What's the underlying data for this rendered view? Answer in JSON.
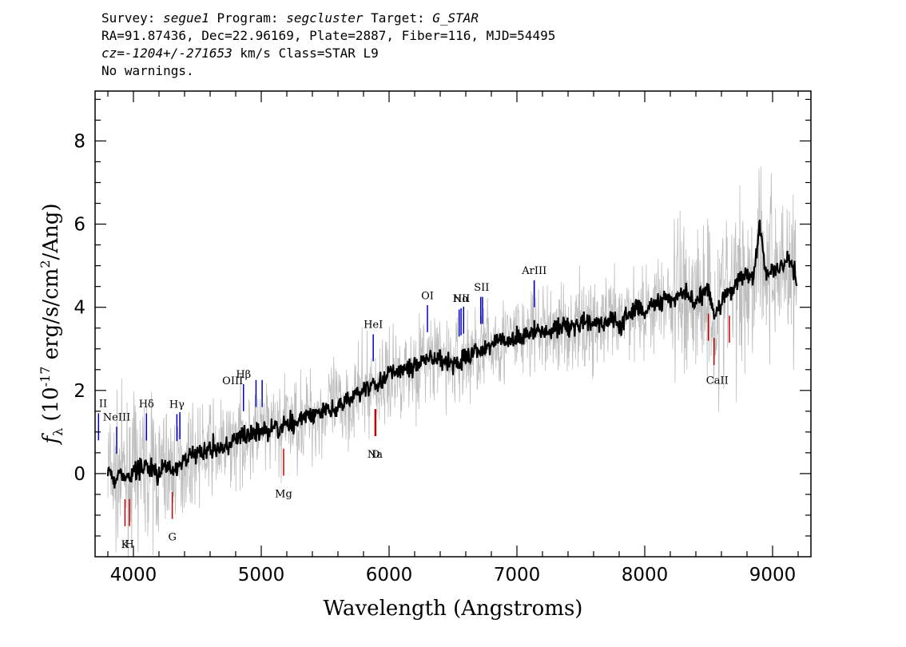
{
  "header": {
    "line1": {
      "survey_label": "Survey: ",
      "survey": "segue1",
      "program_label": " Program: ",
      "program": "segcluster",
      "target_label": " Target: ",
      "target": "G_STAR"
    },
    "line2": "RA=91.87436, Dec=22.96169, Plate=2887, Fiber=116, MJD=54495",
    "line3": {
      "cz_label": "cz=",
      "cz_value": "-1204+/-271653",
      "cz_rest": " km/s Class=STAR L9"
    },
    "line4": "No warnings."
  },
  "chart_data": {
    "type": "line",
    "xlabel": "Wavelength (Angstroms)",
    "ylabel": "f_λ (10^-17 erg/s/cm^2/Ang)",
    "xlim": [
      3700,
      9300
    ],
    "ylim": [
      -2,
      9.2
    ],
    "x_ticks": [
      4000,
      5000,
      6000,
      7000,
      8000,
      9000
    ],
    "y_ticks": [
      0,
      2,
      4,
      6,
      8
    ],
    "grid": false,
    "colors": {
      "flux": "#000000",
      "noise": "#bdbdbd",
      "emission": "#0000cc",
      "absorption": "#cc0000"
    },
    "series": [
      {
        "role": "smoothed flux",
        "x": [
          3800,
          3850,
          3900,
          3950,
          4000,
          4050,
          4100,
          4150,
          4200,
          4250,
          4300,
          4350,
          4400,
          4450,
          4500,
          4550,
          4600,
          4650,
          4700,
          4750,
          4800,
          4850,
          4900,
          4950,
          5000,
          5050,
          5100,
          5150,
          5200,
          5250,
          5300,
          5350,
          5400,
          5450,
          5500,
          5550,
          5600,
          5650,
          5700,
          5750,
          5800,
          5850,
          5900,
          5950,
          6000,
          6050,
          6100,
          6150,
          6200,
          6250,
          6300,
          6350,
          6400,
          6450,
          6500,
          6550,
          6600,
          6650,
          6700,
          6750,
          6800,
          6850,
          6900,
          6950,
          7000,
          7050,
          7100,
          7150,
          7200,
          7250,
          7300,
          7350,
          7400,
          7450,
          7500,
          7550,
          7600,
          7650,
          7700,
          7750,
          7800,
          7850,
          7900,
          7950,
          8000,
          8050,
          8100,
          8150,
          8200,
          8250,
          8300,
          8350,
          8400,
          8450,
          8500,
          8550,
          8600,
          8650,
          8700,
          8750,
          8800,
          8850,
          8900,
          8950,
          9000,
          9050,
          9100,
          9150,
          9190
        ],
        "y": [
          0.2,
          -0.2,
          0.0,
          -0.1,
          0.0,
          0.1,
          0.2,
          0.1,
          0.0,
          0.2,
          0.1,
          0.2,
          0.3,
          0.4,
          0.5,
          0.5,
          0.6,
          0.6,
          0.6,
          0.7,
          0.8,
          0.9,
          0.9,
          1.0,
          1.0,
          1.0,
          1.1,
          1.1,
          1.2,
          1.2,
          1.3,
          1.4,
          1.4,
          1.5,
          1.5,
          1.6,
          1.6,
          1.7,
          1.8,
          1.9,
          2.0,
          2.1,
          2.1,
          2.2,
          2.3,
          2.4,
          2.5,
          2.5,
          2.6,
          2.7,
          2.8,
          2.7,
          2.8,
          2.7,
          2.6,
          2.7,
          2.8,
          2.9,
          3.0,
          3.0,
          3.1,
          3.2,
          3.2,
          3.2,
          3.3,
          3.3,
          3.4,
          3.4,
          3.5,
          3.4,
          3.5,
          3.5,
          3.5,
          3.5,
          3.6,
          3.6,
          3.6,
          3.6,
          3.6,
          3.7,
          3.5,
          3.8,
          3.9,
          4.0,
          3.9,
          4.0,
          4.1,
          4.2,
          4.2,
          4.2,
          4.3,
          4.3,
          4.1,
          4.3,
          4.4,
          3.7,
          4.2,
          4.3,
          4.5,
          4.7,
          4.8,
          4.7,
          6.0,
          4.8,
          4.9,
          5.0,
          5.1,
          5.0,
          4.6
        ]
      }
    ],
    "line_markers": [
      {
        "label": "II",
        "x": 3727,
        "kind": "emission"
      },
      {
        "label": "NeIII",
        "x": 3869,
        "kind": "emission"
      },
      {
        "label": "Hδ",
        "x": 4102,
        "kind": "emission"
      },
      {
        "label": "Hγ",
        "x": 4340,
        "kind": "emission"
      },
      {
        "label": "OIII",
        "x": 4363,
        "kind": "emission"
      },
      {
        "label": "Hβ",
        "x": 4861,
        "kind": "emission"
      },
      {
        "label": "OIII",
        "x": 4959,
        "kind": "emission"
      },
      {
        "label": "OIII",
        "x": 5007,
        "kind": "emission"
      },
      {
        "label": "HeI",
        "x": 5876,
        "kind": "emission"
      },
      {
        "label": "OI",
        "x": 6300,
        "kind": "emission"
      },
      {
        "label": "NII",
        "x": 6548,
        "kind": "emission"
      },
      {
        "label": "Hα",
        "x": 6563,
        "kind": "emission"
      },
      {
        "label": "NII",
        "x": 6583,
        "kind": "emission"
      },
      {
        "label": "SII",
        "x": 6717,
        "kind": "emission"
      },
      {
        "label": "SII",
        "x": 6731,
        "kind": "emission"
      },
      {
        "label": "ArIII",
        "x": 7136,
        "kind": "emission"
      },
      {
        "label": "K",
        "x": 3934,
        "kind": "absorption"
      },
      {
        "label": "H",
        "x": 3969,
        "kind": "absorption"
      },
      {
        "label": "G",
        "x": 4304,
        "kind": "absorption"
      },
      {
        "label": "Mg",
        "x": 5175,
        "kind": "absorption"
      },
      {
        "label": "Na",
        "x": 5890,
        "kind": "absorption"
      },
      {
        "label": "D",
        "x": 5896,
        "kind": "absorption"
      },
      {
        "label": "CaII",
        "x": 8498,
        "kind": "absorption"
      },
      {
        "label": "CaII",
        "x": 8542,
        "kind": "absorption"
      },
      {
        "label": "CaII",
        "x": 8662,
        "kind": "absorption"
      }
    ]
  }
}
